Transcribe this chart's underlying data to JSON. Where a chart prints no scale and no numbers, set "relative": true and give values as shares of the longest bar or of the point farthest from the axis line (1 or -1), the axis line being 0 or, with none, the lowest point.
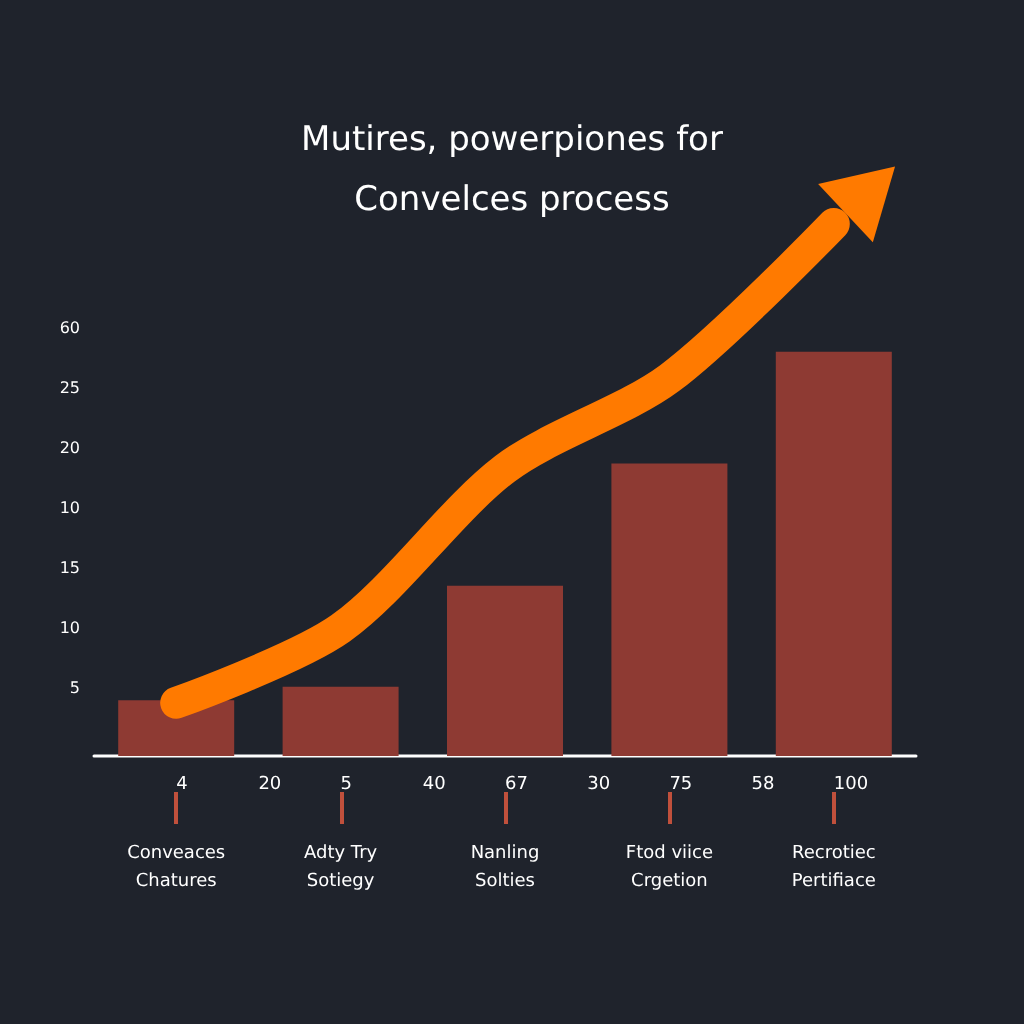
{
  "chart_data": {
    "type": "bar",
    "title": "Mutires, powerpiones for\nConvelces process",
    "relative": true,
    "categories": [
      "Conveaces\nChatures",
      "Adty Try\nSotiegy",
      "Nanling\nSolties",
      "Ftod viice\nCrgetion",
      "Recrotiec\nPertifiace"
    ],
    "annotations": [
      "60",
      "25",
      "20",
      "10",
      "15",
      "10",
      "5",
      "4",
      "20",
      "5",
      "40",
      "67",
      "30",
      "75",
      "58",
      "100"
    ],
    "grid": false,
    "series": [
      {
        "color": "#8e3a33",
        "values": [
          0.105,
          0.13,
          0.32,
          0.55,
          0.76
        ]
      },
      {
        "type": "line",
        "color": "#ff7a00",
        "values": [
          0.1,
          0.24,
          0.54,
          0.71,
          1
        ]
      }
    ]
  }
}
